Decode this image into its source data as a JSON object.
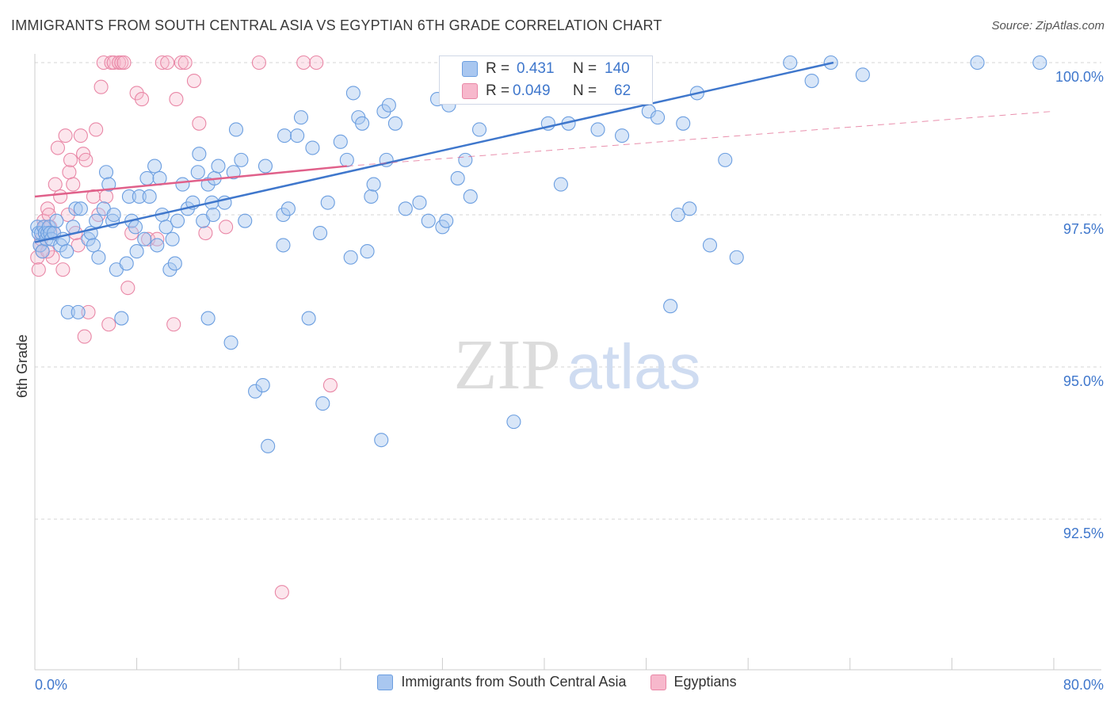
{
  "title": "IMMIGRANTS FROM SOUTH CENTRAL ASIA VS EGYPTIAN 6TH GRADE CORRELATION CHART",
  "source": "Source: ZipAtlas.com",
  "watermark": {
    "zip": "ZIP",
    "atlas": "atlas"
  },
  "stats": {
    "r_label": "R =",
    "n_label": "N =",
    "rows": [
      {
        "series": "Immigrants from South Central Asia",
        "r": "0.431",
        "n": "140",
        "color": "#a9c7f0",
        "border": "#6b9ee0"
      },
      {
        "series": "Egyptians",
        "r": "0.049",
        "n": "62",
        "color": "#f7b8cc",
        "border": "#e987a6"
      }
    ]
  },
  "legend": {
    "items": [
      {
        "label": "Immigrants from South Central Asia",
        "color": "#a9c7f0",
        "border": "#6b9ee0"
      },
      {
        "label": "Egyptians",
        "color": "#f7b8cc",
        "border": "#e987a6"
      }
    ]
  },
  "chart_data": {
    "type": "scatter",
    "title": "IMMIGRANTS FROM SOUTH CENTRAL ASIA VS EGYPTIAN 6TH GRADE CORRELATION CHART",
    "xlabel": "",
    "ylabel": "6th Grade",
    "xlim": [
      0,
      80
    ],
    "ylim": [
      90.0,
      100.2
    ],
    "x_tick_labels": [
      "0.0%",
      "80.0%"
    ],
    "y_ticks": [
      100.0,
      97.5,
      95.0,
      92.5
    ],
    "y_tick_labels": [
      "100.0%",
      "97.5%",
      "95.0%",
      "92.5%"
    ],
    "grid": true,
    "legend_position": "bottom",
    "colors": {
      "blue": "#3f77cc",
      "pink": "#e0608a",
      "blue_fill": "#a9c7f0",
      "pink_fill": "#f7b8cc"
    },
    "series": [
      {
        "name": "Immigrants from South Central Asia",
        "trend": {
          "x": [
            0,
            62.7
          ],
          "y": [
            97.05,
            100.0
          ]
        },
        "points": [
          [
            0.2,
            97.3
          ],
          [
            0.3,
            97.2
          ],
          [
            0.4,
            97.0
          ],
          [
            0.5,
            97.2
          ],
          [
            0.6,
            96.9
          ],
          [
            0.7,
            97.3
          ],
          [
            0.8,
            97.2
          ],
          [
            0.9,
            97.1
          ],
          [
            1.0,
            97.2
          ],
          [
            1.1,
            97.3
          ],
          [
            1.2,
            97.2
          ],
          [
            1.3,
            97.1
          ],
          [
            1.5,
            97.2
          ],
          [
            1.7,
            97.4
          ],
          [
            2.0,
            97.0
          ],
          [
            2.2,
            97.1
          ],
          [
            2.5,
            96.9
          ],
          [
            2.6,
            95.9
          ],
          [
            3.0,
            97.3
          ],
          [
            3.2,
            97.6
          ],
          [
            3.4,
            95.9
          ],
          [
            3.6,
            97.6
          ],
          [
            4.2,
            97.1
          ],
          [
            4.4,
            97.2
          ],
          [
            4.6,
            97.0
          ],
          [
            4.8,
            97.4
          ],
          [
            5.0,
            96.8
          ],
          [
            5.4,
            97.6
          ],
          [
            5.6,
            98.2
          ],
          [
            5.8,
            98.0
          ],
          [
            6.1,
            97.4
          ],
          [
            6.2,
            97.5
          ],
          [
            6.4,
            96.6
          ],
          [
            6.8,
            95.8
          ],
          [
            7.2,
            96.7
          ],
          [
            7.4,
            97.8
          ],
          [
            7.6,
            97.4
          ],
          [
            7.9,
            97.3
          ],
          [
            8.0,
            96.9
          ],
          [
            8.2,
            97.8
          ],
          [
            8.6,
            97.1
          ],
          [
            8.8,
            98.1
          ],
          [
            9.0,
            97.8
          ],
          [
            9.4,
            98.3
          ],
          [
            9.6,
            97.0
          ],
          [
            9.8,
            98.1
          ],
          [
            10.0,
            97.5
          ],
          [
            10.3,
            97.3
          ],
          [
            10.6,
            96.6
          ],
          [
            10.8,
            97.1
          ],
          [
            11.0,
            96.7
          ],
          [
            11.2,
            97.4
          ],
          [
            11.6,
            98.0
          ],
          [
            12.0,
            97.6
          ],
          [
            12.4,
            97.7
          ],
          [
            12.8,
            98.2
          ],
          [
            12.9,
            98.5
          ],
          [
            13.2,
            97.4
          ],
          [
            13.6,
            98.0
          ],
          [
            13.6,
            95.8
          ],
          [
            13.9,
            97.7
          ],
          [
            14.0,
            97.5
          ],
          [
            14.1,
            98.1
          ],
          [
            14.4,
            98.3
          ],
          [
            14.9,
            97.7
          ],
          [
            15.4,
            95.4
          ],
          [
            15.6,
            98.2
          ],
          [
            15.8,
            98.9
          ],
          [
            16.2,
            98.4
          ],
          [
            16.5,
            97.4
          ],
          [
            17.3,
            94.6
          ],
          [
            17.9,
            94.7
          ],
          [
            18.1,
            98.3
          ],
          [
            18.3,
            93.7
          ],
          [
            19.5,
            97.5
          ],
          [
            19.5,
            97.0
          ],
          [
            19.6,
            98.8
          ],
          [
            19.9,
            97.6
          ],
          [
            20.6,
            98.8
          ],
          [
            20.9,
            99.1
          ],
          [
            21.5,
            95.8
          ],
          [
            21.8,
            98.6
          ],
          [
            22.4,
            97.2
          ],
          [
            22.6,
            94.4
          ],
          [
            23.0,
            97.7
          ],
          [
            24.0,
            98.7
          ],
          [
            24.5,
            98.4
          ],
          [
            24.8,
            96.8
          ],
          [
            25.0,
            99.5
          ],
          [
            25.4,
            99.1
          ],
          [
            25.7,
            99.0
          ],
          [
            26.1,
            96.9
          ],
          [
            26.4,
            97.8
          ],
          [
            26.6,
            98.0
          ],
          [
            27.2,
            93.8
          ],
          [
            27.4,
            99.2
          ],
          [
            27.6,
            98.4
          ],
          [
            27.8,
            99.3
          ],
          [
            28.3,
            99.0
          ],
          [
            29.1,
            97.6
          ],
          [
            30.2,
            97.7
          ],
          [
            30.9,
            97.4
          ],
          [
            31.6,
            99.4
          ],
          [
            32.0,
            97.3
          ],
          [
            32.3,
            97.4
          ],
          [
            32.5,
            99.3
          ],
          [
            33.2,
            98.1
          ],
          [
            33.8,
            98.4
          ],
          [
            34.2,
            97.8
          ],
          [
            34.9,
            98.9
          ],
          [
            35.6,
            99.6
          ],
          [
            36.6,
            99.8
          ],
          [
            37.6,
            94.1
          ],
          [
            38.8,
            100.0
          ],
          [
            39.2,
            100.0
          ],
          [
            40.3,
            99.0
          ],
          [
            41.3,
            98.0
          ],
          [
            41.9,
            99.0
          ],
          [
            43.2,
            100.0
          ],
          [
            44.2,
            98.9
          ],
          [
            45.1,
            99.5
          ],
          [
            46.1,
            98.8
          ],
          [
            47.2,
            100.0
          ],
          [
            47.8,
            100.0
          ],
          [
            48.2,
            99.2
          ],
          [
            48.9,
            99.1
          ],
          [
            49.9,
            96.0
          ],
          [
            50.5,
            97.5
          ],
          [
            50.9,
            99.0
          ],
          [
            51.4,
            97.6
          ],
          [
            52.0,
            99.5
          ],
          [
            53.0,
            97.0
          ],
          [
            54.2,
            98.4
          ],
          [
            55.1,
            96.8
          ],
          [
            59.3,
            100.0
          ],
          [
            61.0,
            99.7
          ],
          [
            62.5,
            100.0
          ],
          [
            65.0,
            99.8
          ],
          [
            74.0,
            100.0
          ],
          [
            78.9,
            100.0
          ]
        ]
      },
      {
        "name": "Egyptians",
        "trend": {
          "x": [
            0,
            24.5
          ],
          "y": [
            97.8,
            98.3
          ]
        },
        "trend_extension": {
          "x": [
            24.5,
            80
          ],
          "y": [
            98.3,
            99.2
          ]
        },
        "points": [
          [
            0.2,
            96.8
          ],
          [
            0.3,
            96.6
          ],
          [
            0.4,
            97.0
          ],
          [
            0.5,
            97.1
          ],
          [
            0.6,
            96.9
          ],
          [
            0.7,
            97.4
          ],
          [
            0.8,
            97.3
          ],
          [
            1.0,
            97.6
          ],
          [
            1.1,
            97.5
          ],
          [
            1.2,
            97.3
          ],
          [
            1.4,
            96.8
          ],
          [
            1.5,
            97.2
          ],
          [
            1.6,
            98.0
          ],
          [
            1.8,
            98.6
          ],
          [
            2.0,
            97.8
          ],
          [
            2.2,
            96.6
          ],
          [
            2.4,
            98.8
          ],
          [
            2.6,
            97.5
          ],
          [
            2.7,
            98.2
          ],
          [
            2.8,
            98.4
          ],
          [
            3.0,
            98.0
          ],
          [
            3.2,
            97.2
          ],
          [
            3.4,
            97.0
          ],
          [
            3.6,
            98.8
          ],
          [
            3.8,
            98.5
          ],
          [
            3.9,
            95.5
          ],
          [
            4.0,
            98.4
          ],
          [
            4.2,
            95.9
          ],
          [
            4.6,
            97.8
          ],
          [
            4.8,
            98.9
          ],
          [
            5.0,
            97.5
          ],
          [
            5.2,
            99.6
          ],
          [
            5.4,
            100.0
          ],
          [
            5.6,
            97.8
          ],
          [
            5.8,
            95.7
          ],
          [
            6.0,
            100.0
          ],
          [
            6.2,
            100.0
          ],
          [
            6.6,
            100.0
          ],
          [
            6.8,
            100.0
          ],
          [
            7.0,
            100.0
          ],
          [
            7.3,
            96.3
          ],
          [
            7.6,
            97.2
          ],
          [
            8.0,
            99.5
          ],
          [
            8.4,
            99.4
          ],
          [
            8.9,
            97.1
          ],
          [
            9.6,
            97.1
          ],
          [
            10.0,
            100.0
          ],
          [
            10.4,
            100.0
          ],
          [
            10.9,
            95.7
          ],
          [
            11.1,
            99.4
          ],
          [
            11.5,
            100.0
          ],
          [
            11.8,
            100.0
          ],
          [
            12.5,
            99.7
          ],
          [
            12.9,
            99.0
          ],
          [
            13.4,
            97.2
          ],
          [
            15.0,
            97.3
          ],
          [
            17.6,
            100.0
          ],
          [
            19.4,
            91.3
          ],
          [
            21.1,
            100.0
          ],
          [
            22.1,
            100.0
          ],
          [
            23.2,
            94.7
          ],
          [
            1.0,
            96.9
          ]
        ]
      }
    ]
  }
}
